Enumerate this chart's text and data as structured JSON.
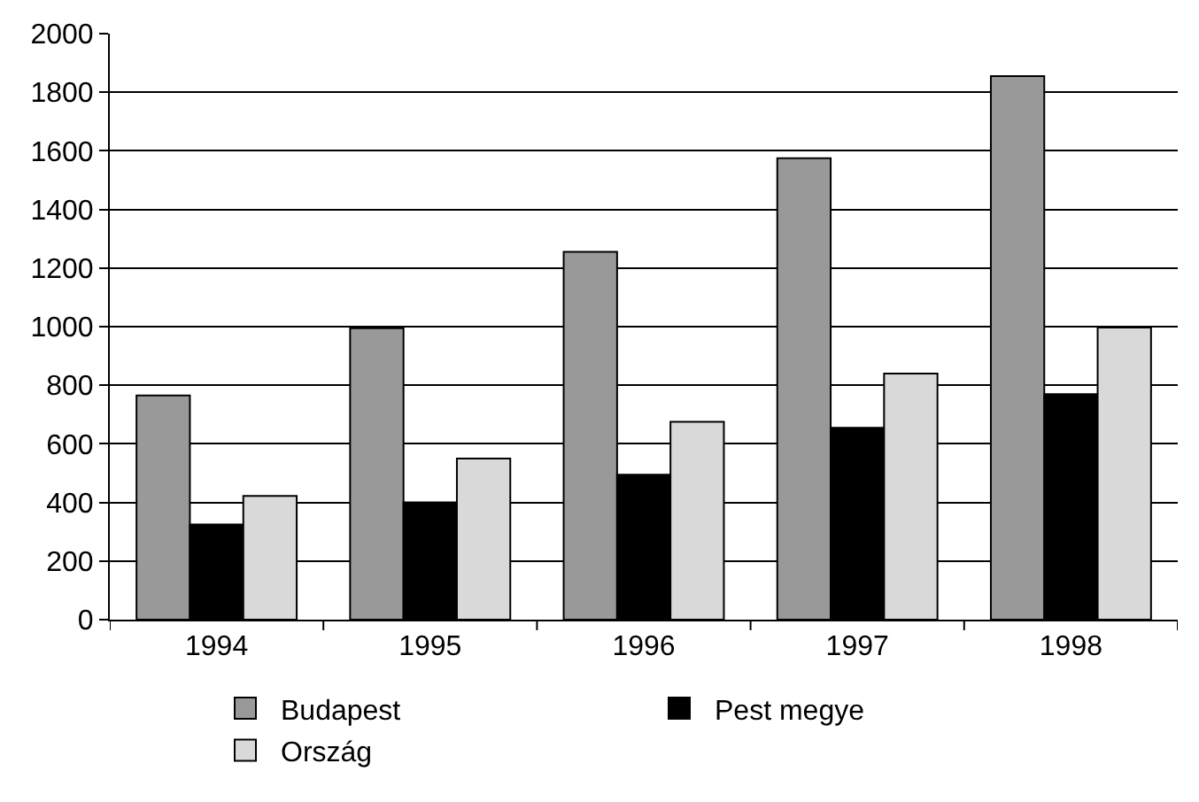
{
  "chart_data": {
    "type": "bar",
    "categories": [
      "1994",
      "1995",
      "1996",
      "1997",
      "1998"
    ],
    "series": [
      {
        "name": "Budapest",
        "color": "#999999",
        "values": [
          765,
          995,
          1255,
          1575,
          1855
        ]
      },
      {
        "name": "Pest megye",
        "color": "#000000",
        "values": [
          325,
          400,
          495,
          655,
          770
        ]
      },
      {
        "name": "Ország",
        "color": "#d9d9d9",
        "values": [
          422,
          550,
          675,
          840,
          997
        ]
      }
    ],
    "ylim": [
      0,
      2000
    ],
    "yticks": [
      0,
      200,
      400,
      600,
      800,
      1000,
      1200,
      1400,
      1600,
      1800,
      2000
    ],
    "grid": "y",
    "legend": "bottom"
  }
}
